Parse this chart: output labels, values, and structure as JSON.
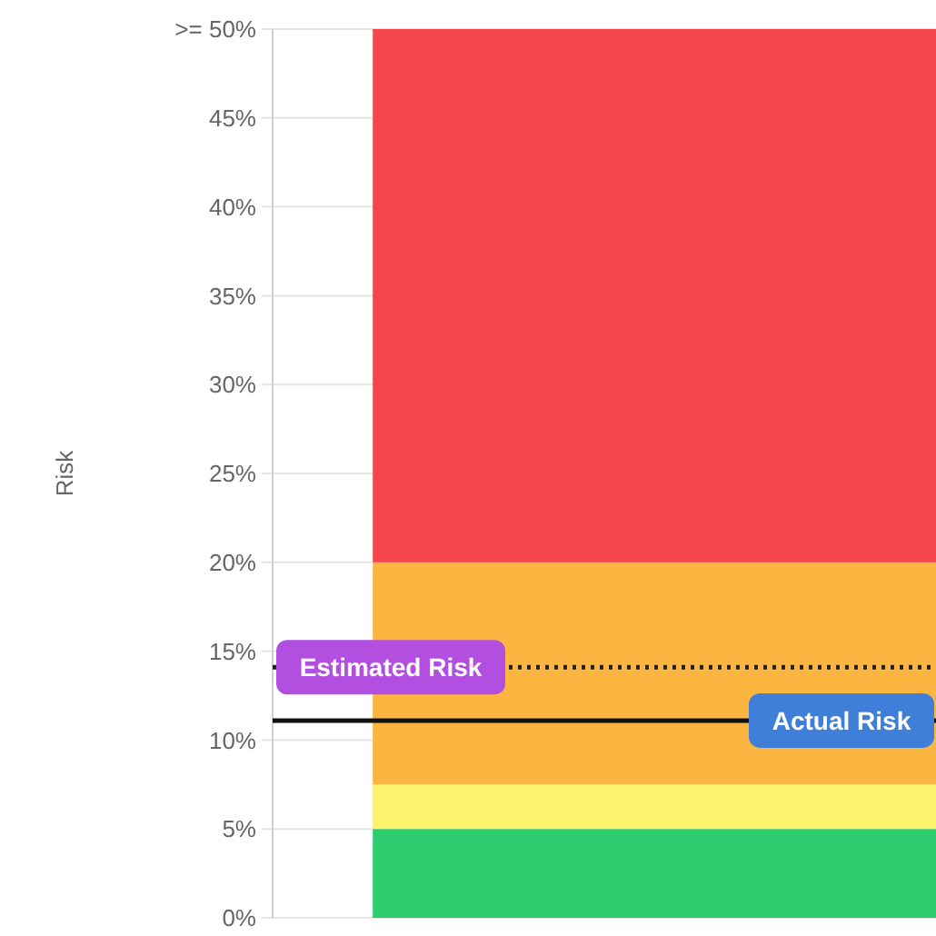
{
  "chart_data": {
    "type": "bar",
    "stacked": true,
    "ylabel": "Risk",
    "categories": [
      null
    ],
    "series": [
      {
        "color": "#2ecc6f",
        "values": [
          5
        ]
      },
      {
        "color": "#fdf26c",
        "values": [
          2.5
        ]
      },
      {
        "color": "#fbb540",
        "values": [
          12.5
        ]
      },
      {
        "color": "#f5464b",
        "values": [
          30
        ]
      }
    ],
    "ylim": [
      0,
      50
    ],
    "yticks": [
      {
        "value": 0,
        "label": "0%"
      },
      {
        "value": 5,
        "label": "5%"
      },
      {
        "value": 10,
        "label": "10%"
      },
      {
        "value": 15,
        "label": "15%"
      },
      {
        "value": 20,
        "label": "20%"
      },
      {
        "value": 25,
        "label": "25%"
      },
      {
        "value": 30,
        "label": "30%"
      },
      {
        "value": 35,
        "label": "35%"
      },
      {
        "value": 40,
        "label": "40%"
      },
      {
        "value": 45,
        "label": "45%"
      },
      {
        "value": 50,
        "label": ">= 50%"
      }
    ],
    "grid": "y",
    "ref_lines": [
      {
        "axis": "y",
        "value": 14.1,
        "label": "Estimated Risk",
        "color": "#222222",
        "line_style": "dotted"
      },
      {
        "axis": "y",
        "value": 11.1,
        "label": "Actual Risk",
        "color": "#111111",
        "line_style": "solid"
      }
    ]
  }
}
